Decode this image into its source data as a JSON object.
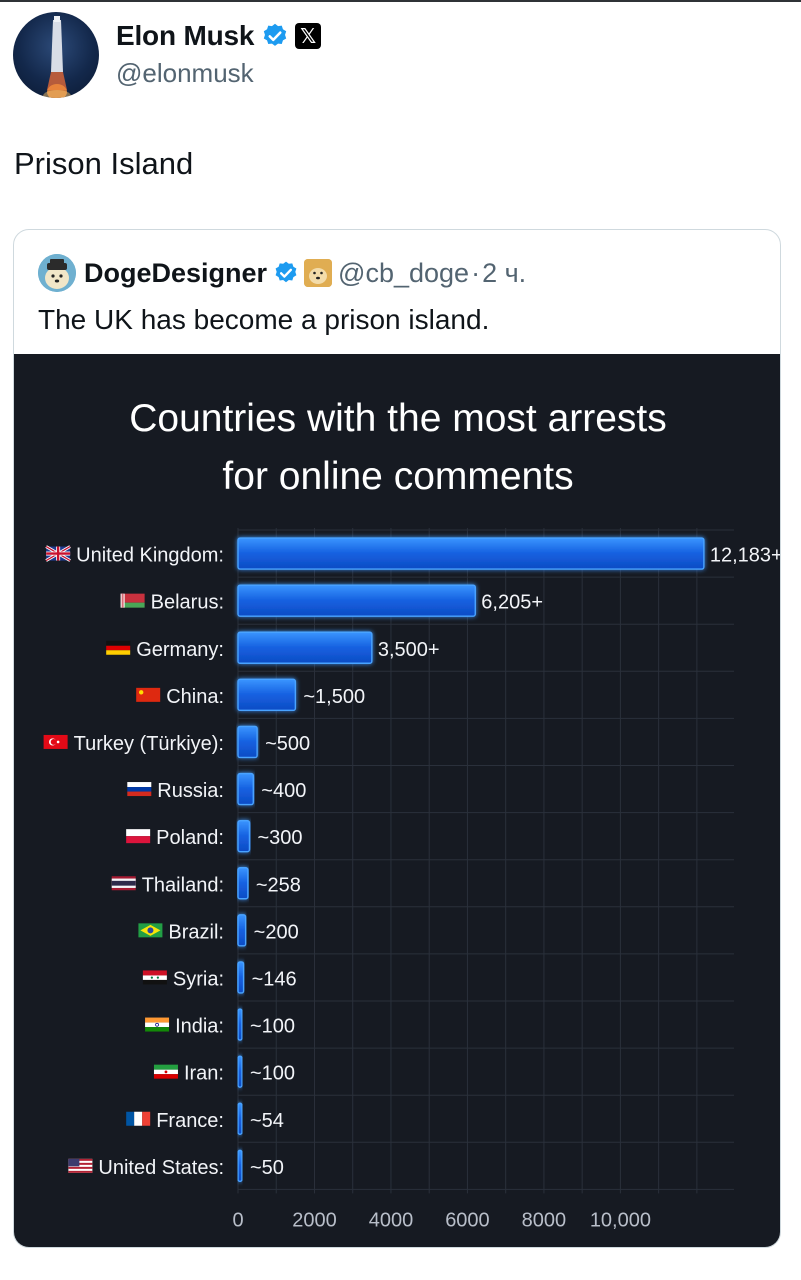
{
  "tweet": {
    "author_name": "Elon Musk",
    "author_handle": "@elonmusk",
    "text": "Prison Island",
    "icons": [
      "avatar",
      "verified-badge-icon",
      "x-logo-icon"
    ]
  },
  "quote": {
    "author_name": "DogeDesigner",
    "author_handle": "@cb_doge",
    "separator": "·",
    "time": "2 ч.",
    "text": "The UK has become a prison island.",
    "icons": [
      "doge-avatar",
      "verified-badge-icon",
      "doge-emoji-icon"
    ]
  },
  "colors": {
    "verified": "#1d9bf0",
    "chart_bg": "#161a22",
    "bar": "#1a6ff0",
    "bar_glow": "#2f8dff",
    "secondary_text": "#536471"
  },
  "chart_data": {
    "type": "bar",
    "orientation": "horizontal",
    "title": "Countries with the most arrests\nfor online comments",
    "title_lines": [
      "Countries with the most arrests",
      "for online comments"
    ],
    "categories": [
      "United Kingdom:",
      "Belarus:",
      "Germany:",
      "China:",
      "Turkey (Türkiye):",
      "Russia:",
      "Poland:",
      "Thailand:",
      "Brazil:",
      "Syria:",
      "India:",
      "Iran:",
      "France:",
      "United States:"
    ],
    "flags": [
      "gb",
      "by",
      "de",
      "cn",
      "tr",
      "ru",
      "pl",
      "th",
      "br",
      "sy",
      "in",
      "ir",
      "fr",
      "us"
    ],
    "values": [
      12183,
      6205,
      3500,
      1500,
      500,
      400,
      300,
      258,
      200,
      146,
      100,
      100,
      54,
      50
    ],
    "value_labels": [
      "12,183+",
      "6,205+",
      "3,500+",
      "~1,500",
      "~500",
      "~400",
      "~300",
      "~258",
      "~200",
      "~146",
      "~100",
      "~100",
      "~54",
      "~50"
    ],
    "xticks": [
      0,
      2000,
      4000,
      6000,
      8000,
      10000
    ],
    "xtick_labels": [
      "0",
      "2000",
      "4000",
      "6000",
      "8000",
      "10,000"
    ],
    "xlim": [
      0,
      12500
    ],
    "grid": true,
    "xlabel": "",
    "ylabel": ""
  }
}
